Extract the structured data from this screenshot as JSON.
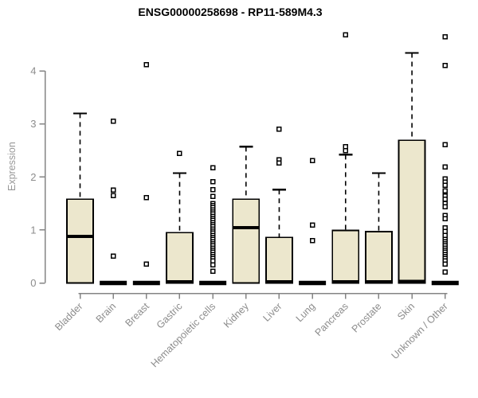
{
  "chart_data": {
    "type": "boxplot",
    "title": "ENSG00000258698 - RP11-589M4.3",
    "ylabel": "Expression",
    "xlabel": "",
    "yticks": [
      0,
      1,
      2,
      3,
      4
    ],
    "ylim": [
      0,
      4.7
    ],
    "grid": false,
    "legend": "none",
    "colors": {
      "box_fill": "#ece7cd",
      "box_stroke": "#000000",
      "axis": "#848484",
      "tick_label": "#8c8c8c",
      "title": "#000000"
    },
    "categories": [
      "Bladder",
      "Brain",
      "Breast",
      "Gastric",
      "Hematopoietic cells",
      "Kidney",
      "Liver",
      "Lung",
      "Pancreas",
      "Prostate",
      "Skin",
      "Unknown / Other"
    ],
    "series": [
      {
        "category": "Bladder",
        "q1": 0,
        "median": 0.88,
        "q3": 1.58,
        "whisker_low": 0,
        "whisker_high": 3.2,
        "outliers": []
      },
      {
        "category": "Brain",
        "q1": 0,
        "median": 0,
        "q3": 0,
        "whisker_low": 0,
        "whisker_high": 0,
        "outliers": [
          3.05,
          1.75,
          1.65,
          0.51
        ]
      },
      {
        "category": "Breast",
        "q1": 0,
        "median": 0,
        "q3": 0,
        "whisker_low": 0,
        "whisker_high": 0,
        "outliers": [
          4.12,
          1.61,
          0.36
        ]
      },
      {
        "category": "Gastric",
        "q1": 0,
        "median": 0.02,
        "q3": 0.95,
        "whisker_low": 0,
        "whisker_high": 2.07,
        "outliers": [
          2.44
        ]
      },
      {
        "category": "Hematopoietic cells",
        "q1": 0,
        "median": 0,
        "q3": 0,
        "whisker_low": 0,
        "whisker_high": 0,
        "outliers": [
          2.17,
          1.91,
          1.76,
          1.63,
          1.5,
          1.46,
          1.42,
          1.38,
          1.34,
          1.3,
          1.26,
          1.22,
          1.18,
          1.14,
          1.1,
          1.06,
          1.02,
          0.98,
          0.94,
          0.9,
          0.86,
          0.82,
          0.78,
          0.74,
          0.7,
          0.66,
          0.62,
          0.58,
          0.54,
          0.5,
          0.46,
          0.42,
          0.34,
          0.22
        ]
      },
      {
        "category": "Kidney",
        "q1": 0,
        "median": 1.04,
        "q3": 1.58,
        "whisker_low": 0,
        "whisker_high": 2.57,
        "outliers": []
      },
      {
        "category": "Liver",
        "q1": 0,
        "median": 0.02,
        "q3": 0.86,
        "whisker_low": 0,
        "whisker_high": 1.76,
        "outliers": [
          2.9,
          2.32,
          2.26
        ]
      },
      {
        "category": "Lung",
        "q1": 0,
        "median": 0,
        "q3": 0,
        "whisker_low": 0,
        "whisker_high": 0,
        "outliers": [
          2.31,
          1.09,
          0.8
        ]
      },
      {
        "category": "Pancreas",
        "q1": 0,
        "median": 0.02,
        "q3": 0.99,
        "whisker_low": 0,
        "whisker_high": 2.42,
        "outliers": [
          4.68,
          2.57,
          2.5
        ]
      },
      {
        "category": "Prostate",
        "q1": 0,
        "median": 0.02,
        "q3": 0.97,
        "whisker_low": 0,
        "whisker_high": 2.07,
        "outliers": []
      },
      {
        "category": "Skin",
        "q1": 0,
        "median": 0.03,
        "q3": 2.69,
        "whisker_low": 0,
        "whisker_high": 4.34,
        "outliers": []
      },
      {
        "category": "Unknown / Other",
        "q1": 0,
        "median": 0,
        "q3": 0,
        "whisker_low": 0,
        "whisker_high": 0,
        "outliers": [
          4.64,
          4.1,
          2.61,
          2.19,
          1.96,
          1.9,
          1.84,
          1.74,
          1.64,
          1.58,
          1.5,
          1.44,
          1.27,
          1.21,
          1.04,
          0.97,
          0.9,
          0.82,
          0.78,
          0.74,
          0.7,
          0.66,
          0.62,
          0.58,
          0.54,
          0.5,
          0.46,
          0.42,
          0.36,
          0.21
        ]
      }
    ]
  }
}
